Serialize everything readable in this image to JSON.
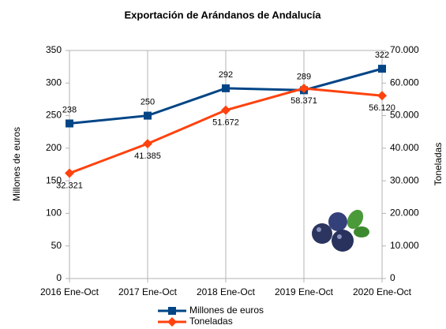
{
  "chart_data": {
    "type": "line",
    "title": "Exportación de Arándanos de Andalucía",
    "ylabel": "Millones de euros",
    "y2label": "Toneladas",
    "categories": [
      "2016 Ene-Oct",
      "2017 Ene-Oct",
      "2018 Ene-Oct",
      "2019 Ene-Oct",
      "2020 Ene-Oct"
    ],
    "series": [
      {
        "name": "Millones de euros",
        "color": "#004586",
        "values": [
          238,
          250,
          292,
          289,
          322
        ]
      },
      {
        "name": "Toneladas",
        "color": "#ff420e",
        "axis": "y2",
        "values": [
          32321,
          41385,
          51672,
          58371,
          56120
        ],
        "value_labels": [
          "32.321",
          "41.385",
          "51.672",
          "58.371",
          "56.120"
        ]
      }
    ],
    "ylim": [
      0,
      350
    ],
    "yticks": [
      0,
      50,
      100,
      150,
      200,
      250,
      300,
      350
    ],
    "y2lim": [
      0,
      70000
    ],
    "y2ticks": [
      0,
      {
        "value": 10000,
        "label": "10.000"
      },
      {
        "value": 20000,
        "label": "20.000"
      },
      {
        "value": 30000,
        "label": "30.000"
      },
      {
        "value": 40000,
        "label": "40.000"
      },
      {
        "value": 50000,
        "label": "50.000"
      },
      {
        "value": 60000,
        "label": "60.000"
      },
      {
        "value": 70000,
        "label": "70.000"
      }
    ],
    "legend": "bottom"
  }
}
